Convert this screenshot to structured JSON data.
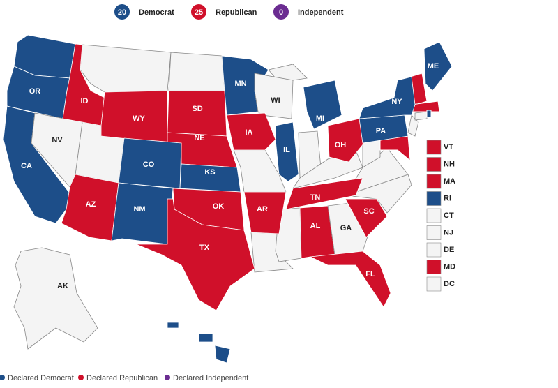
{
  "legend": [
    {
      "count": 20,
      "label": "Democrat",
      "color": "#1d4e89"
    },
    {
      "count": 25,
      "label": "Republican",
      "color": "#d0102a"
    },
    {
      "count": 0,
      "label": "Independent",
      "color": "#6b2c91"
    }
  ],
  "undeclared_color": "#f4f4f4",
  "states": [
    {
      "label": "OR",
      "party": "Democrat"
    },
    {
      "label": "CA",
      "party": "Democrat"
    },
    {
      "label": "NV",
      "party": null
    },
    {
      "label": "ID",
      "party": "Republican"
    },
    {
      "label": "WY",
      "party": "Republican"
    },
    {
      "label": "SD",
      "party": "Republican"
    },
    {
      "label": "NE",
      "party": "Republican"
    },
    {
      "label": "CO",
      "party": "Democrat"
    },
    {
      "label": "KS",
      "party": "Democrat"
    },
    {
      "label": "AZ",
      "party": "Republican"
    },
    {
      "label": "NM",
      "party": "Democrat"
    },
    {
      "label": "OK",
      "party": "Republican"
    },
    {
      "label": "TX",
      "party": "Republican"
    },
    {
      "label": "MN",
      "party": "Democrat"
    },
    {
      "label": "WI",
      "party": null
    },
    {
      "label": "IA",
      "party": "Republican"
    },
    {
      "label": "IL",
      "party": "Democrat"
    },
    {
      "label": "MI",
      "party": "Democrat"
    },
    {
      "label": "OH",
      "party": "Republican"
    },
    {
      "label": "AR",
      "party": "Republican"
    },
    {
      "label": "TN",
      "party": "Republican"
    },
    {
      "label": "AL",
      "party": "Republican"
    },
    {
      "label": "GA",
      "party": null
    },
    {
      "label": "SC",
      "party": "Republican"
    },
    {
      "label": "FL",
      "party": "Republican"
    },
    {
      "label": "PA",
      "party": "Democrat"
    },
    {
      "label": "NY",
      "party": "Democrat"
    },
    {
      "label": "ME",
      "party": "Democrat"
    },
    {
      "label": "AK",
      "party": null
    },
    {
      "label": "HI",
      "party": "Democrat"
    }
  ],
  "small_states": [
    {
      "label": "VT",
      "party": "Republican"
    },
    {
      "label": "NH",
      "party": "Republican"
    },
    {
      "label": "MA",
      "party": "Republican"
    },
    {
      "label": "RI",
      "party": "Democrat"
    },
    {
      "label": "CT",
      "party": null
    },
    {
      "label": "NJ",
      "party": null
    },
    {
      "label": "DE",
      "party": null
    },
    {
      "label": "MD",
      "party": "Republican"
    },
    {
      "label": "DC",
      "party": null
    }
  ],
  "bottom_legend": [
    {
      "label": "Declared Democrat",
      "color": "#1d4e89"
    },
    {
      "label": "Declared Republican",
      "color": "#d0102a"
    },
    {
      "label": "Declared Independent",
      "color": "#6b2c91"
    }
  ]
}
